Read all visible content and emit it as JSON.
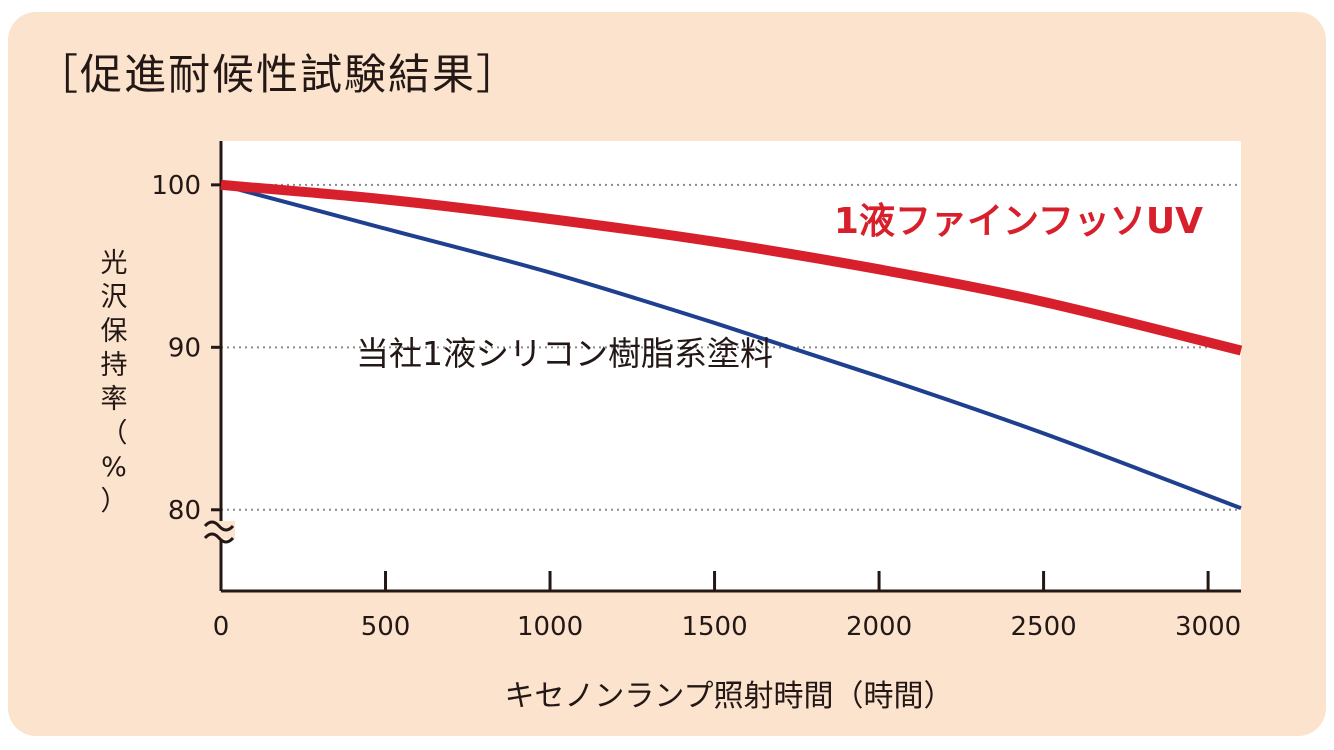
{
  "page": {
    "background_color": "#fce3cd"
  },
  "chart_data": {
    "type": "line",
    "title": "［促進耐候性試験結果］",
    "xlabel": "キセノンランプ照射時間（時間）",
    "ylabel_chars": [
      "光",
      "沢",
      "保",
      "持",
      "率",
      "（",
      "%",
      "）"
    ],
    "ylabel": "光沢保持率（%）",
    "xlim": [
      0,
      3100
    ],
    "ylim": [
      75,
      102.7
    ],
    "y_axis_break": true,
    "x_ticks": [
      0,
      500,
      1000,
      1500,
      2000,
      2500,
      3000
    ],
    "x_tick_labels": [
      "0",
      "500",
      "1000",
      "1500",
      "2000",
      "2500",
      "3000"
    ],
    "y_ticks": [
      80,
      90,
      100
    ],
    "y_tick_labels": [
      "80",
      "90",
      "100"
    ],
    "grid": "dotted horizontal at y ticks",
    "series": [
      {
        "name": "1液ファインフッソUV",
        "color": "#d7202b",
        "x": [
          0,
          500,
          1000,
          1500,
          2000,
          2500,
          3100
        ],
        "values": [
          100,
          99.1,
          97.9,
          96.5,
          94.8,
          92.8,
          89.8
        ]
      },
      {
        "name": "当社1液シリコン樹脂系塗料",
        "color": "#1f3f8f",
        "x": [
          0,
          500,
          1000,
          1500,
          2000,
          2500,
          3100
        ],
        "values": [
          100,
          97.3,
          94.6,
          91.5,
          88.2,
          84.7,
          80.1
        ]
      }
    ]
  }
}
